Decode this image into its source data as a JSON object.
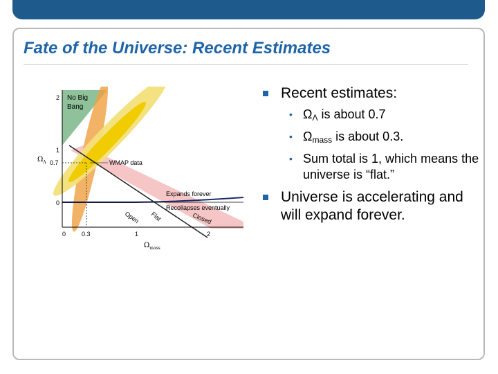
{
  "slide": {
    "title": "Fate of the Universe: Recent Estimates"
  },
  "diagram": {
    "region_labels": {
      "no_big_bang_1": "No Big",
      "no_big_bang_2": "Bang",
      "wmap": "WMAP data",
      "expands_forever": "Expands forever",
      "recollapses": "Recollapses eventually",
      "open": "Open",
      "flat": "Flat",
      "closed": "Closed"
    },
    "y_axis": {
      "label": "Ω",
      "label_sub": "Λ",
      "ticks": [
        "2",
        "1",
        "0.7",
        "0"
      ]
    },
    "x_axis": {
      "label": "Ω",
      "label_sub": "mass",
      "ticks": [
        "0",
        "0.3",
        "1",
        "2"
      ]
    },
    "colors": {
      "no_big_bang": "#8fc29a",
      "wmap_outer": "#f3e07a",
      "wmap_inner": "#f0cc00",
      "supernova": "#f0a040",
      "cluster": "#f5c0c0",
      "boundary_line": "#1a2a6e",
      "flat_line": "#222222"
    }
  },
  "bullets": [
    {
      "text": "Recent estimates:",
      "children": [
        {
          "symbol": "Ω",
          "sub": "Λ",
          "text": " is about 0.7"
        },
        {
          "symbol": "Ω",
          "sub": "mass",
          "text": " is about 0.3."
        },
        {
          "symbol": "",
          "sub": "",
          "text": "Sum total is 1, which means the universe is “flat.”"
        }
      ]
    },
    {
      "text": "Universe is accelerating and will expand forever.",
      "children": []
    }
  ],
  "bullet_marker": "•"
}
